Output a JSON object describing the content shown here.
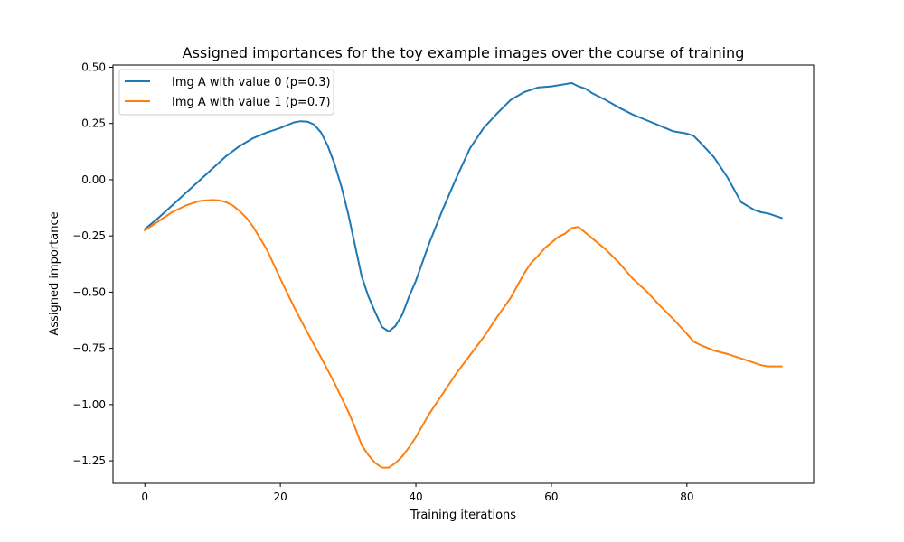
{
  "chart_data": {
    "type": "line",
    "title": "Assigned importances for the toy example images over the course of training",
    "xlabel": "Training iterations",
    "ylabel": "Assigned importance",
    "xlim": [
      -4.7,
      98.7
    ],
    "ylim": [
      -1.35,
      0.51
    ],
    "xticks": [
      0,
      20,
      40,
      60,
      80
    ],
    "yticks": [
      0.5,
      0.25,
      0.0,
      -0.25,
      -0.5,
      -0.75,
      -1.0,
      -1.25
    ],
    "ytick_labels": [
      "0.50",
      "0.25",
      "0.00",
      "−0.25",
      "−0.50",
      "−0.75",
      "−1.00",
      "−1.25"
    ],
    "legend_position": "upper-left",
    "grid": false,
    "series": [
      {
        "name": "Img A with value 0 (p=0.3)",
        "color": "#1f77b4",
        "x": [
          0,
          2,
          4,
          6,
          8,
          10,
          12,
          14,
          16,
          18,
          20,
          22,
          23,
          24,
          25,
          26,
          27,
          28,
          29,
          30,
          31,
          32,
          33,
          34,
          35,
          36,
          37,
          38,
          39,
          40,
          42,
          44,
          46,
          48,
          50,
          52,
          54,
          56,
          58,
          60,
          62,
          63,
          64,
          65,
          66,
          68,
          70,
          72,
          74,
          76,
          78,
          80,
          81,
          82,
          84,
          86,
          88,
          90,
          91,
          92,
          93,
          94
        ],
        "y": [
          -0.22,
          -0.17,
          -0.115,
          -0.06,
          -0.005,
          0.05,
          0.105,
          0.15,
          0.185,
          0.21,
          0.23,
          0.255,
          0.26,
          0.258,
          0.245,
          0.21,
          0.15,
          0.07,
          -0.03,
          -0.15,
          -0.29,
          -0.43,
          -0.52,
          -0.59,
          -0.655,
          -0.675,
          -0.65,
          -0.6,
          -0.52,
          -0.45,
          -0.28,
          -0.13,
          0.01,
          0.14,
          0.23,
          0.295,
          0.355,
          0.39,
          0.41,
          0.415,
          0.425,
          0.43,
          0.415,
          0.405,
          0.385,
          0.355,
          0.32,
          0.29,
          0.265,
          0.24,
          0.215,
          0.205,
          0.195,
          0.165,
          0.1,
          0.01,
          -0.1,
          -0.135,
          -0.145,
          -0.15,
          -0.16,
          -0.17
        ]
      },
      {
        "name": "Img A with value 1 (p=0.7)",
        "color": "#ff7f0e",
        "x": [
          0,
          2,
          4,
          6,
          8,
          9,
          10,
          11,
          12,
          13,
          14,
          15,
          16,
          17,
          18,
          20,
          22,
          24,
          26,
          28,
          30,
          31,
          32,
          33,
          34,
          35,
          36,
          37,
          38,
          39,
          40,
          42,
          44,
          46,
          48,
          50,
          52,
          54,
          55,
          56,
          57,
          58,
          59,
          60,
          61,
          62,
          63,
          64,
          65,
          66,
          68,
          70,
          72,
          74,
          76,
          78,
          80,
          81,
          82,
          84,
          86,
          88,
          89,
          90,
          91,
          92,
          93,
          94
        ],
        "y": [
          -0.225,
          -0.185,
          -0.145,
          -0.115,
          -0.095,
          -0.092,
          -0.09,
          -0.092,
          -0.1,
          -0.115,
          -0.14,
          -0.17,
          -0.21,
          -0.26,
          -0.31,
          -0.44,
          -0.565,
          -0.68,
          -0.79,
          -0.905,
          -1.03,
          -1.1,
          -1.18,
          -1.225,
          -1.26,
          -1.28,
          -1.28,
          -1.26,
          -1.23,
          -1.19,
          -1.145,
          -1.04,
          -0.95,
          -0.86,
          -0.78,
          -0.7,
          -0.61,
          -0.525,
          -0.47,
          -0.415,
          -0.37,
          -0.34,
          -0.305,
          -0.28,
          -0.255,
          -0.24,
          -0.215,
          -0.21,
          -0.235,
          -0.26,
          -0.31,
          -0.37,
          -0.44,
          -0.495,
          -0.56,
          -0.62,
          -0.685,
          -0.72,
          -0.735,
          -0.76,
          -0.775,
          -0.795,
          -0.805,
          -0.815,
          -0.825,
          -0.83,
          -0.83,
          -0.83
        ]
      }
    ]
  }
}
